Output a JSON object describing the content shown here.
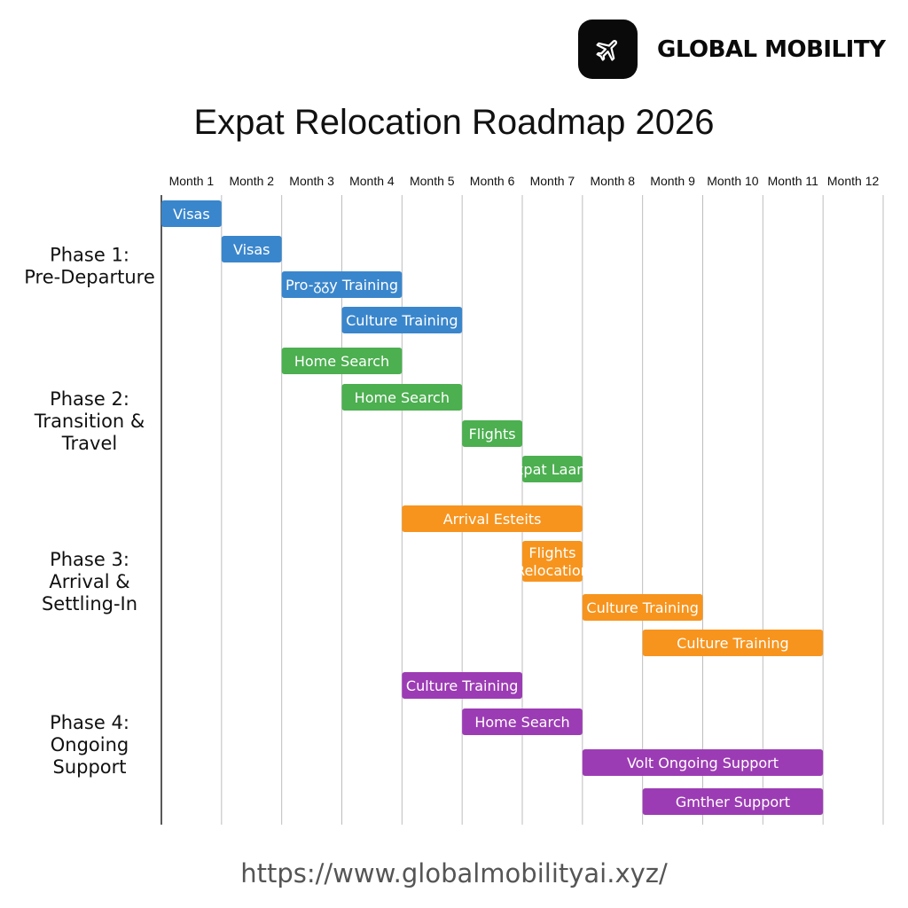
{
  "brand": {
    "name": "GLOBAL MOBILITY",
    "icon": "airplane-icon",
    "logo_background": "#0a0a0a"
  },
  "footer": {
    "url": "https://www.globalmobilityai.xyz/"
  },
  "chart_data": {
    "type": "gantt",
    "title": "Expat Relocation Roadmap 2026",
    "months": [
      "Month 1",
      "Month 2",
      "Month 3",
      "Month 4",
      "Month 5",
      "Month 6",
      "Month 7",
      "Month 8",
      "Month 9",
      "Month 10",
      "Month 11",
      "Month 12"
    ],
    "grid": true,
    "phases": [
      {
        "label": [
          "Phase 1:",
          "Pre-Departure"
        ],
        "color": "#3a86cc",
        "tasks": [
          {
            "label": [
              "Visas"
            ],
            "start_month": 1,
            "end_month": 2
          },
          {
            "label": [
              "Visas"
            ],
            "start_month": 2,
            "end_month": 3
          },
          {
            "label": [
              "Pro-ᵹᵹy Training"
            ],
            "start_month": 3,
            "end_month": 5
          },
          {
            "label": [
              "Culture Training"
            ],
            "start_month": 4,
            "end_month": 6
          }
        ]
      },
      {
        "label": [
          "Phase 2:",
          "Transition &",
          "Travel"
        ],
        "color": "#4caf50",
        "tasks": [
          {
            "label": [
              "Home Search"
            ],
            "start_month": 3,
            "end_month": 5
          },
          {
            "label": [
              "Home Search"
            ],
            "start_month": 4,
            "end_month": 6
          },
          {
            "label": [
              "Flights"
            ],
            "start_month": 6,
            "end_month": 7
          },
          {
            "label": [
              "Expat Laants"
            ],
            "start_month": 7,
            "end_month": 8
          }
        ]
      },
      {
        "label": [
          "Phase 3:",
          "Arrival &",
          "Settling-In"
        ],
        "color": "#f7941d",
        "tasks": [
          {
            "label": [
              "Arrival Esteits"
            ],
            "start_month": 5,
            "end_month": 8
          },
          {
            "label": [
              "Flights",
              "Relocation"
            ],
            "start_month": 7,
            "end_month": 8
          },
          {
            "label": [
              "Culture Training"
            ],
            "start_month": 8,
            "end_month": 10
          },
          {
            "label": [
              "Culture Training"
            ],
            "start_month": 9,
            "end_month": 12
          }
        ]
      },
      {
        "label": [
          "Phase 4:",
          "Ongoing",
          "Support"
        ],
        "color": "#9c3cb4",
        "tasks": [
          {
            "label": [
              "Culture Training"
            ],
            "start_month": 5,
            "end_month": 7
          },
          {
            "label": [
              "Home Search"
            ],
            "start_month": 6,
            "end_month": 8
          },
          {
            "label": [
              "Volt Ongoing Support"
            ],
            "start_month": 8,
            "end_month": 12
          },
          {
            "label": [
              "Gmther Support"
            ],
            "start_month": 9,
            "end_month": 12
          }
        ]
      }
    ]
  }
}
